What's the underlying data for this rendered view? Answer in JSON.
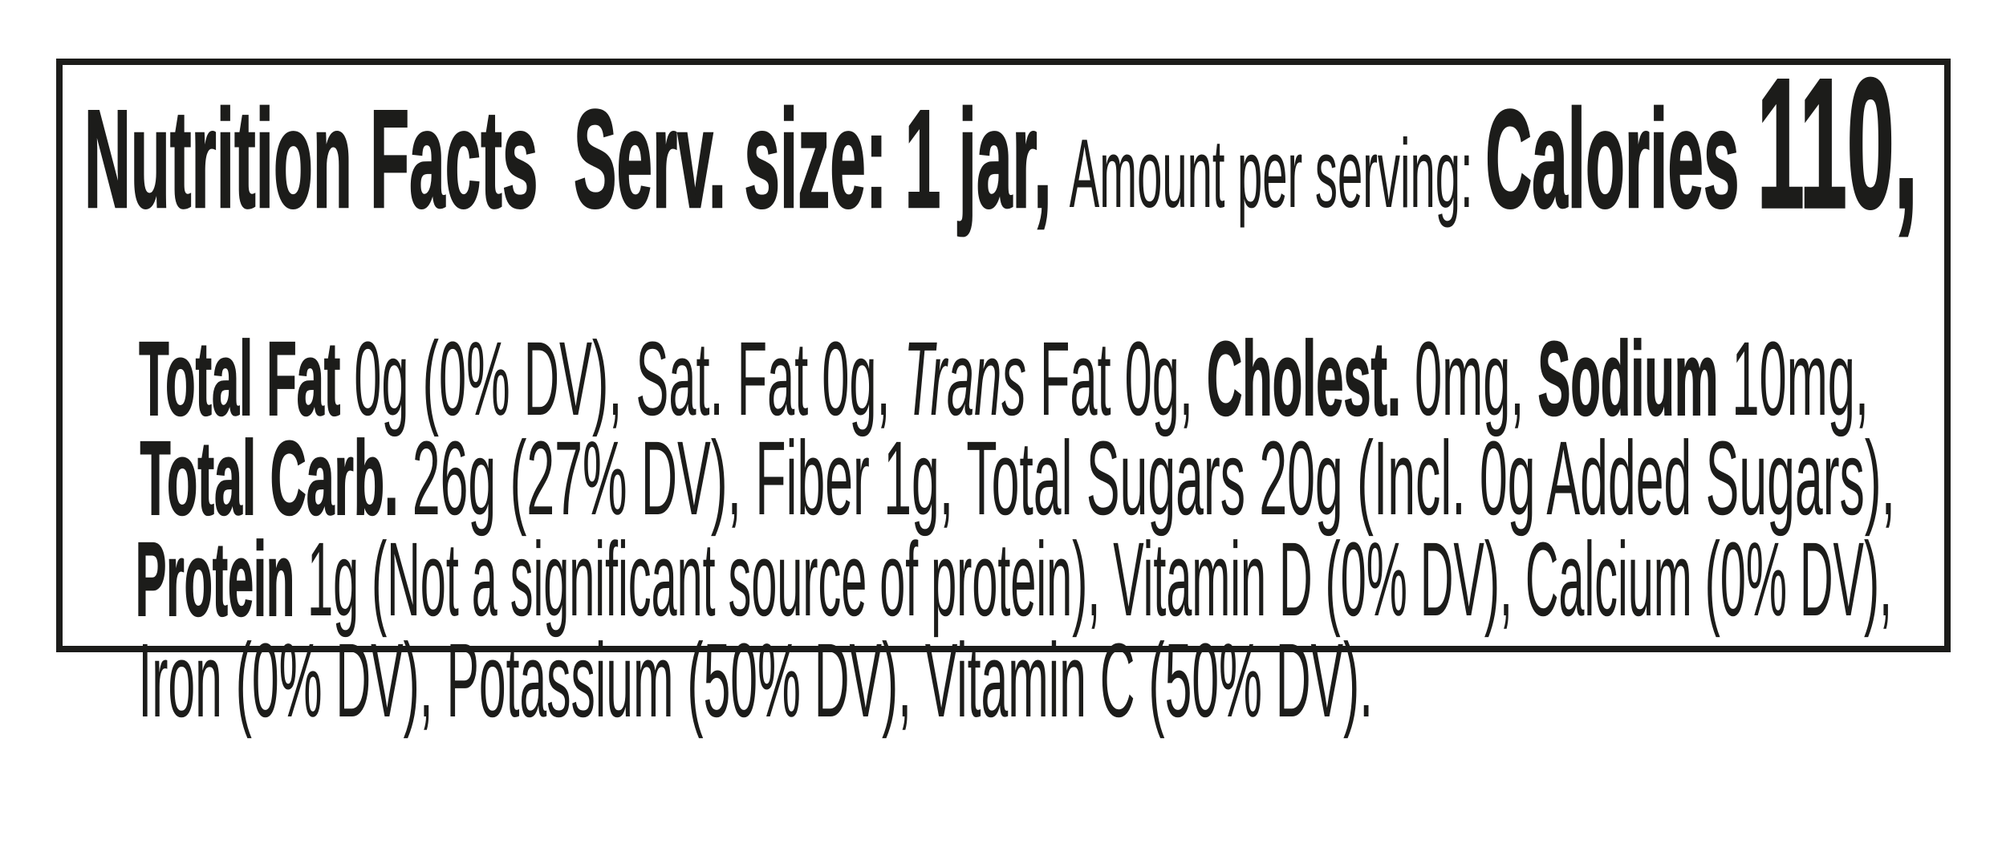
{
  "label": {
    "lines": [
      {
        "segments": [
          {
            "text": "Nutrition Facts  "
          },
          {
            "text": "Serv. size: 1 jar, "
          },
          {
            "text": "Amount per serving: "
          },
          {
            "text": "Calories "
          },
          {
            "text": "110,"
          }
        ]
      },
      {
        "segments": [
          {
            "text": "Total Fat"
          },
          {
            "text": " 0g (0% DV), Sat. Fat 0g, "
          },
          {
            "text": "Trans"
          },
          {
            "text": " Fat 0g, "
          },
          {
            "text": "Cholest."
          },
          {
            "text": " 0mg, "
          },
          {
            "text": "Sodium"
          },
          {
            "text": " 10mg,"
          }
        ]
      },
      {
        "segments": [
          {
            "text": "Total Carb."
          },
          {
            "text": " 26g (27% DV), Fiber 1g, Total Sugars 20g (Incl. 0g Added Sugars),"
          }
        ]
      },
      {
        "segments": [
          {
            "text": "Protein"
          },
          {
            "text": " 1g (Not a significant source of protein), Vitamin D (0% DV), Calcium (0% DV),"
          }
        ]
      },
      {
        "segments": [
          {
            "text": "Iron (0% DV), Potassium (50% DV), Vitamin C (50% DV)."
          }
        ]
      }
    ]
  },
  "nutrition": {
    "serving_size": "1 jar",
    "calories": "110",
    "total_fat": "0g (0% DV)",
    "saturated_fat": "0g",
    "trans_fat": "0g",
    "cholesterol": "0mg",
    "sodium": "10mg",
    "total_carbohydrate": "26g (27% DV)",
    "dietary_fiber": "1g",
    "total_sugars": "20g",
    "added_sugars": "Incl. 0g",
    "protein": "1g",
    "protein_note": "Not a significant source of protein",
    "vitamin_d": "0% DV",
    "calcium": "0% DV",
    "iron": "0% DV",
    "potassium": "50% DV",
    "vitamin_c": "50% DV"
  },
  "colors": {
    "text": "#1c1c1a",
    "border": "#1c1c1a",
    "background": "#ffffff"
  }
}
